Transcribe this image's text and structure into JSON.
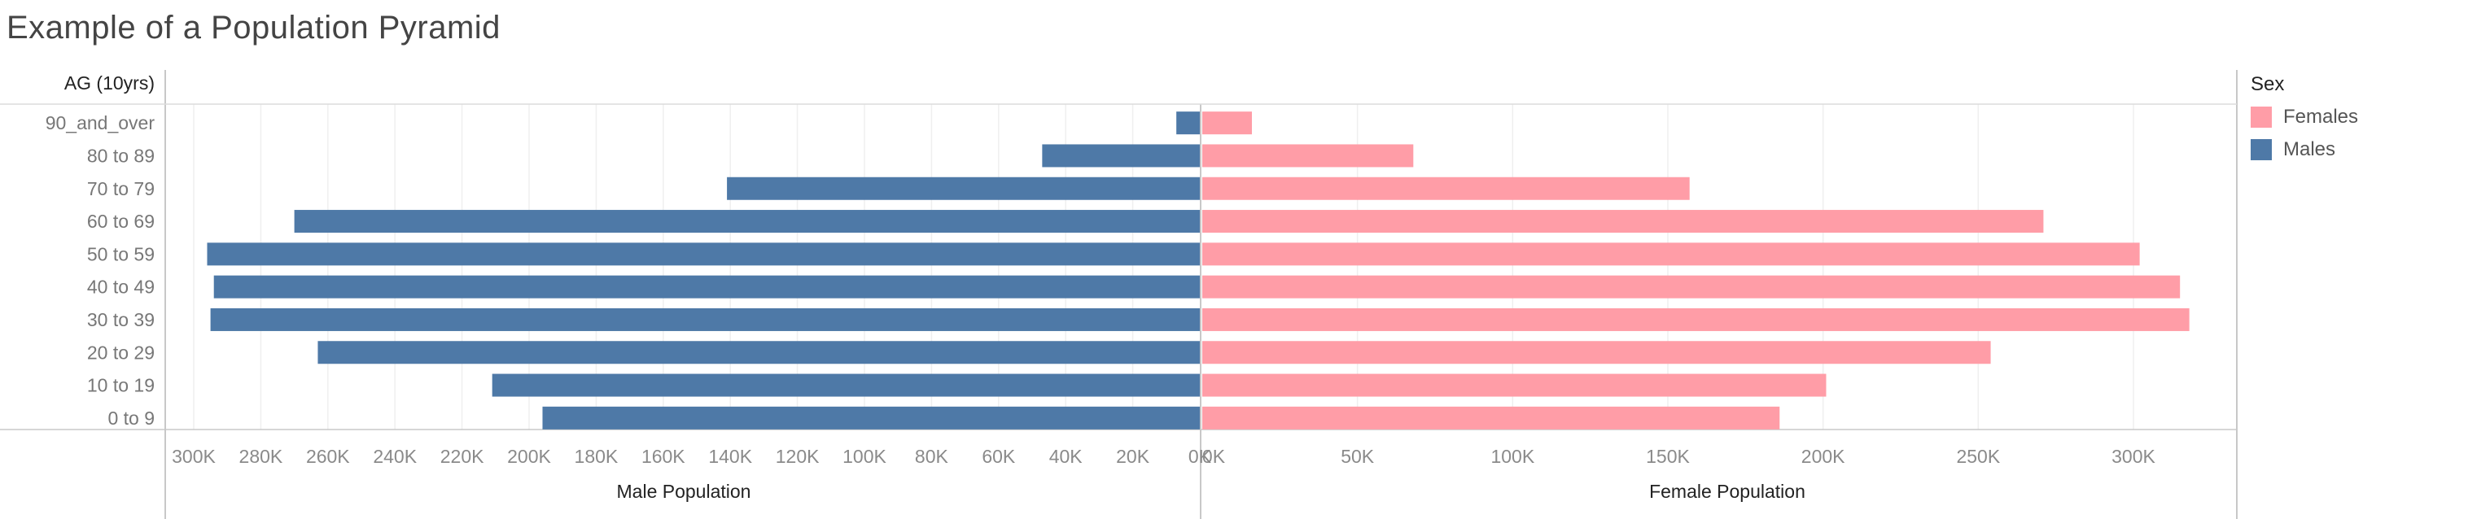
{
  "title": "Example of a Population Pyramid",
  "chart_data": {
    "type": "bar",
    "subtype": "population-pyramid",
    "row_header": "AG (10yrs)",
    "categories": [
      "90_and_over",
      "80 to 89",
      "70 to 79",
      "60 to 69",
      "50 to 59",
      "40 to 49",
      "30 to 39",
      "20 to 29",
      "10 to 19",
      "0 to 9"
    ],
    "series": [
      {
        "name": "Males",
        "color": "#4e79a7",
        "values": [
          7000,
          47000,
          141000,
          270000,
          296000,
          294000,
          295000,
          263000,
          211000,
          196000
        ]
      },
      {
        "name": "Females",
        "color": "#ff9da7",
        "values": [
          16000,
          68000,
          157000,
          271000,
          302000,
          315000,
          318000,
          254000,
          201000,
          186000
        ]
      }
    ],
    "left_axis": {
      "label": "Male Population",
      "ticks": [
        "300K",
        "280K",
        "260K",
        "240K",
        "220K",
        "200K",
        "180K",
        "160K",
        "140K",
        "120K",
        "100K",
        "80K",
        "60K",
        "40K",
        "20K",
        "0K"
      ],
      "range": [
        0,
        310000
      ],
      "reversed": true
    },
    "right_axis": {
      "label": "Female Population",
      "ticks": [
        "0K",
        "50K",
        "100K",
        "150K",
        "200K",
        "250K",
        "300K"
      ],
      "range": [
        0,
        332000
      ]
    },
    "grid": true,
    "legend": {
      "title": "Sex",
      "position": "right",
      "items": [
        {
          "name": "Females",
          "color": "#ff9da7"
        },
        {
          "name": "Males",
          "color": "#4e79a7"
        }
      ]
    }
  }
}
